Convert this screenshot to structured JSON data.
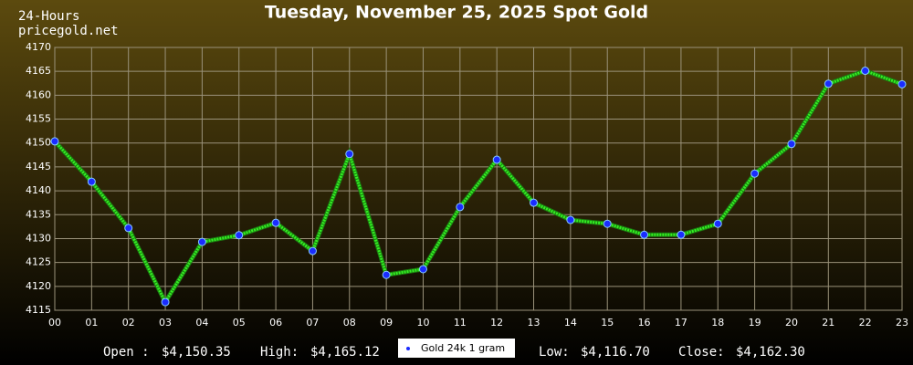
{
  "chart_data": {
    "type": "line",
    "title": "Tuesday, November 25, 2025 Spot Gold",
    "subtitle": [
      "24-Hours",
      "pricegold.net"
    ],
    "categories": [
      "00",
      "01",
      "02",
      "03",
      "04",
      "05",
      "06",
      "07",
      "08",
      "09",
      "10",
      "11",
      "12",
      "13",
      "14",
      "15",
      "16",
      "17",
      "18",
      "19",
      "20",
      "21",
      "22",
      "23"
    ],
    "series": [
      {
        "name": "Gold 24k 1 gram",
        "color": "#33ee22",
        "marker_color": "#1a2cff",
        "values": [
          4150.35,
          4141.9,
          4132.2,
          4116.7,
          4129.3,
          4130.7,
          4133.3,
          4127.4,
          4147.7,
          4122.4,
          4123.6,
          4136.6,
          4146.5,
          4137.5,
          4133.9,
          4133.1,
          4130.8,
          4130.8,
          4133.1,
          4143.6,
          4149.8,
          4162.4,
          4165.12,
          4162.3
        ]
      }
    ],
    "ylim": [
      4115,
      4170
    ],
    "yticks": [
      4115,
      4120,
      4125,
      4130,
      4135,
      4140,
      4145,
      4150,
      4155,
      4160,
      4165,
      4170
    ],
    "grid": true,
    "stats": [
      {
        "label": "Open :",
        "value": "$4,150.35"
      },
      {
        "label": "High:",
        "value": "$4,165.12"
      },
      {
        "label": "Low:",
        "value": "$4,116.70"
      },
      {
        "label": "Close:",
        "value": "$4,162.30"
      }
    ]
  }
}
